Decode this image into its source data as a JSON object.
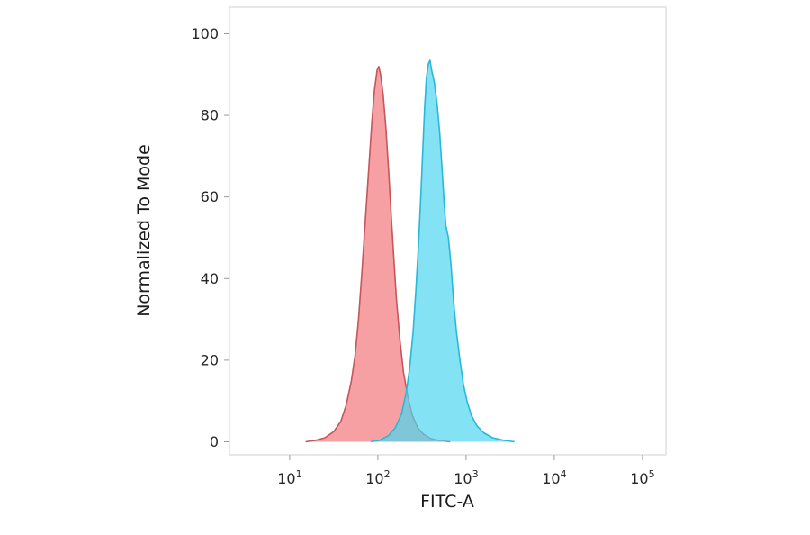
{
  "chart_data": {
    "type": "area",
    "subtype": "flow-cytometry-histogram",
    "title": "",
    "xlabel": "FITC-A",
    "ylabel": "Normalized To Mode",
    "x_scale": "log10",
    "grid": false,
    "legend": false,
    "xlim_log": [
      0.317,
      5.266
    ],
    "ylim": [
      -3.2,
      106.5
    ],
    "x_ticks": [
      {
        "base": "10",
        "exp": "1",
        "log": 1
      },
      {
        "base": "10",
        "exp": "2",
        "log": 2
      },
      {
        "base": "10",
        "exp": "3",
        "log": 3
      },
      {
        "base": "10",
        "exp": "4",
        "log": 4
      },
      {
        "base": "10",
        "exp": "5",
        "log": 5
      }
    ],
    "y_ticks": [
      0,
      20,
      40,
      60,
      80,
      100
    ],
    "colors": {
      "red_fill": "#f58f93",
      "red_fill_opacity": 0.85,
      "red_stroke": "#c4565c",
      "cyan_fill": "#4fd5f0",
      "cyan_fill_opacity": 0.7,
      "cyan_stroke": "#29b8d8",
      "plot_border": "#d9d9d9",
      "tick_color": "#999999"
    },
    "series": [
      {
        "name": "red",
        "peak_log_x": 2.0,
        "peak_y": 92,
        "points": [
          [
            1.18,
            0
          ],
          [
            1.3,
            0.4
          ],
          [
            1.4,
            1
          ],
          [
            1.5,
            2.5
          ],
          [
            1.58,
            5
          ],
          [
            1.64,
            9
          ],
          [
            1.7,
            15
          ],
          [
            1.74,
            21
          ],
          [
            1.78,
            30
          ],
          [
            1.82,
            42
          ],
          [
            1.86,
            55
          ],
          [
            1.9,
            68
          ],
          [
            1.93,
            78
          ],
          [
            1.96,
            86
          ],
          [
            1.99,
            91
          ],
          [
            2.01,
            92
          ],
          [
            2.03,
            90
          ],
          [
            2.06,
            85
          ],
          [
            2.09,
            77
          ],
          [
            2.12,
            67
          ],
          [
            2.15,
            56
          ],
          [
            2.18,
            45
          ],
          [
            2.21,
            35
          ],
          [
            2.25,
            25
          ],
          [
            2.29,
            17
          ],
          [
            2.34,
            11
          ],
          [
            2.39,
            6.5
          ],
          [
            2.45,
            3.5
          ],
          [
            2.52,
            1.8
          ],
          [
            2.6,
            0.8
          ],
          [
            2.7,
            0.3
          ],
          [
            2.82,
            0
          ]
        ]
      },
      {
        "name": "cyan",
        "peak_log_x": 2.57,
        "peak_y": 93.5,
        "points": [
          [
            1.92,
            0
          ],
          [
            2.02,
            0.4
          ],
          [
            2.12,
            1.5
          ],
          [
            2.2,
            3.5
          ],
          [
            2.27,
            7
          ],
          [
            2.32,
            12
          ],
          [
            2.36,
            18
          ],
          [
            2.4,
            27
          ],
          [
            2.43,
            37
          ],
          [
            2.46,
            48
          ],
          [
            2.49,
            62
          ],
          [
            2.51,
            72
          ],
          [
            2.53,
            82
          ],
          [
            2.55,
            89
          ],
          [
            2.57,
            92.5
          ],
          [
            2.59,
            93.5
          ],
          [
            2.61,
            91
          ],
          [
            2.64,
            88
          ],
          [
            2.67,
            83
          ],
          [
            2.7,
            76
          ],
          [
            2.73,
            66
          ],
          [
            2.75,
            59
          ],
          [
            2.77,
            53
          ],
          [
            2.8,
            50
          ],
          [
            2.83,
            43
          ],
          [
            2.86,
            34
          ],
          [
            2.89,
            27
          ],
          [
            2.93,
            20
          ],
          [
            2.97,
            14
          ],
          [
            3.01,
            10
          ],
          [
            3.06,
            6.5
          ],
          [
            3.12,
            4
          ],
          [
            3.2,
            2.2
          ],
          [
            3.3,
            1
          ],
          [
            3.42,
            0.4
          ],
          [
            3.55,
            0
          ]
        ]
      }
    ]
  }
}
